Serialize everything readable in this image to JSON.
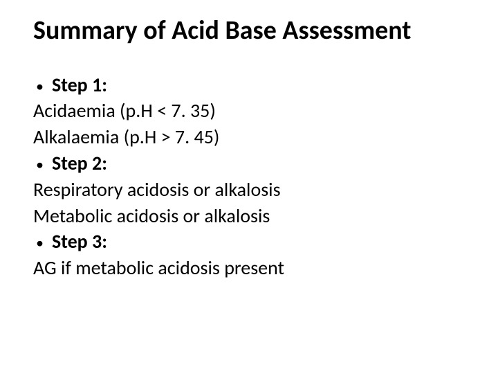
{
  "title": "Summary of Acid Base Assessment",
  "step1_label": "Step 1:",
  "step1_line1": "Acidaemia (p.H < 7. 35)",
  "step1_line2": "Alkalaemia (p.H > 7. 45)",
  "step2_label": "Step 2:",
  "step2_line1": "Respiratory acidosis or alkalosis",
  "step2_line2": "Metabolic acidosis or alkalosis",
  "step3_label": "Step 3:",
  "step3_line1": "AG if metabolic acidosis present",
  "bullet_char": "•",
  "colors": {
    "background": "#ffffff",
    "text": "#000000"
  },
  "typography": {
    "title_fontsize": 38,
    "body_fontsize": 28,
    "font_family": "Calibri, Arial, sans-serif"
  }
}
